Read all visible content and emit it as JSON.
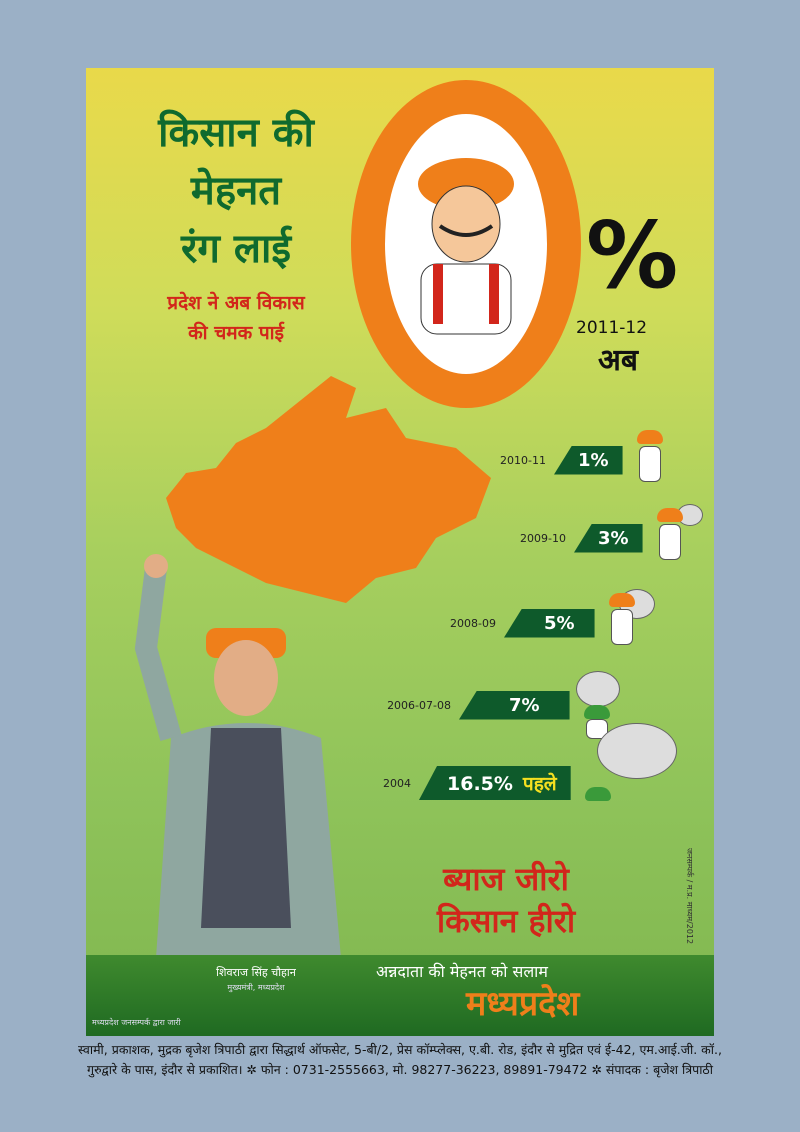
{
  "headline": {
    "line1": "किसान की",
    "line2": "मेहनत",
    "line3": "रंग लाई"
  },
  "subheadline": {
    "line1": "प्रदेश ने अब विकास",
    "line2": "की चमक पाई"
  },
  "big_rate": {
    "digit": "0",
    "percent": "%",
    "year": "2011-12",
    "now": "अब"
  },
  "rates": [
    {
      "year": "2010-11",
      "value": "1%",
      "extra": ""
    },
    {
      "year": "2009-10",
      "value": "3%",
      "extra": ""
    },
    {
      "year": "2008-09",
      "value": "5%",
      "extra": ""
    },
    {
      "year": "2006-07-08",
      "value": "7%",
      "extra": ""
    },
    {
      "year": "2004",
      "value": "16.5%",
      "extra": "पहले"
    }
  ],
  "slogan": {
    "line1": "ब्याज जीरो",
    "line2": "किसान हीरो"
  },
  "person": {
    "name": "शिवराज सिंह चौहान",
    "title": "मुख्यमंत्री, मध्यप्रदेश"
  },
  "tagline": "अन्नदाता की मेहनत को सलाम",
  "brand": "मध्यप्रदेश",
  "issuer": "मध्यप्रदेश जनसम्पर्क द्वारा जारी",
  "vertical_code": "जनसम्पर्क / म.प्र. माध्यम/2012",
  "footer": {
    "line1": "स्वामी, प्रकाशक, मुद्रक बृजेश त्रिपाठी द्वारा सिद्धार्थ ऑफसेट, 5-बी/2, प्रेस कॉम्प्लेक्स, ए.बी. रोड, इंदौर से मुद्रित एवं ई-42, एम.आई.जी. कॉ.,",
    "line2": "गुरुद्वारे के पास, इंदौर से प्रकाशित। ✲ फोन : 0731-2555663, मो. 98277-36223, 89891-79472 ✲ संपादक : बृजेश त्रिपाठी"
  },
  "colors": {
    "green": "#0f6a2e",
    "orange": "#ef7f1a",
    "red": "#d2261b",
    "page": "#9bb0c6"
  }
}
